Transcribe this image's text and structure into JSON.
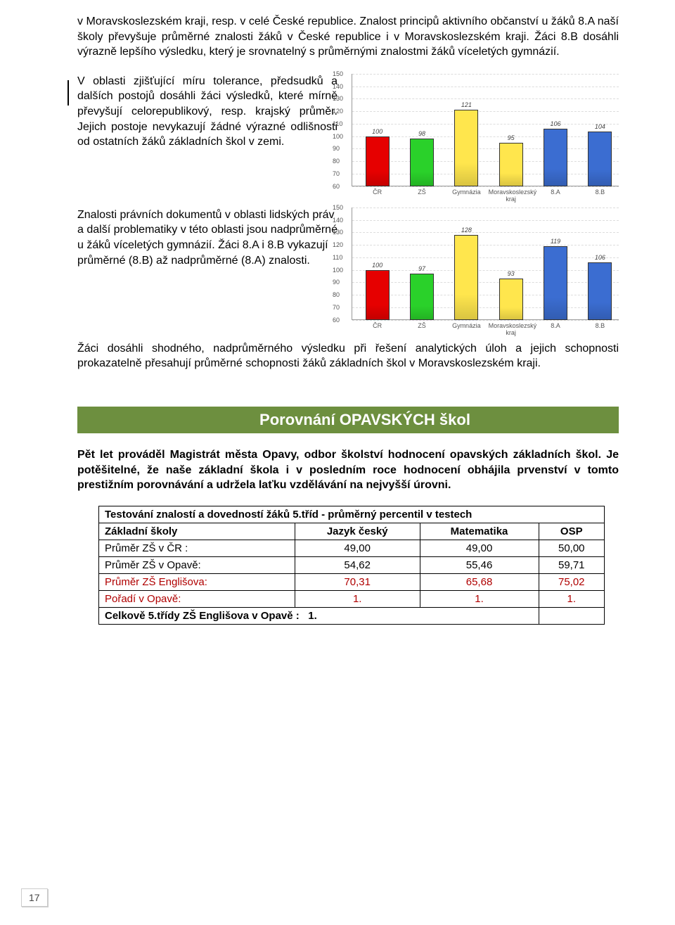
{
  "para1": "v Moravskoslezském kraji, resp. v celé České republice. Znalost principů aktivního občanství u žáků 8.A naší školy převyšuje průměrné znalosti žáků v České republice i v Moravskoslezském kraji. Žáci 8.B dosáhli výrazně lepšího výsledku, který je srovnatelný s průměrnými znalostmi žáků víceletých gymnázií.",
  "para2": "V oblasti zjišťující míru tolerance, předsudků a dalších postojů dosáhli žáci výsledků, které mírně převyšují celorepublikový, resp. krajský průměr. Jejich postoje nevykazují žádné výrazné odlišnosti od ostatních žáků základních škol v zemi.",
  "para3": "Znalosti právních dokumentů v oblasti lidských práv a další problematiky v této oblasti jsou nadprůměrné u žáků víceletých gymnázií. Žáci 8.A i 8.B vykazují průměrné (8.B) až nadprůměrné (8.A) znalosti.",
  "para4": "Žáci dosáhli shodného, nadprůměrného výsledku při řešení analytických úloh a jejich schopnosti prokazatelně přesahují průměrné schopnosti žáků základních škol v Moravskoslezském kraji.",
  "section_title": "Porovnání OPAVSKÝCH škol",
  "para5": "Pět let prováděl Magistrát města Opavy, odbor školství hodnocení opavských základních škol. Je potěšitelné, že naše základní škola i v posledním roce hodnocení obhájila prvenství v tomto prestižním porovnávání a udržela laťku vzdělávání na nejvyšší úrovni.",
  "chart1": {
    "type": "bar",
    "ylim": [
      60,
      150
    ],
    "ytick_step": 10,
    "categories": [
      "ČR",
      "ZŠ",
      "Gymnázia",
      "Moravskoslezský kraj",
      "8.A",
      "8.B"
    ],
    "values": [
      100,
      98,
      121,
      95,
      106,
      104
    ],
    "bar_colors": [
      "#e60000",
      "#2ad12a",
      "#ffe64d",
      "#ffe64d",
      "#3b6dd1",
      "#3b6dd1"
    ],
    "grid_color": "#dddddd"
  },
  "chart2": {
    "type": "bar",
    "ylim": [
      60,
      150
    ],
    "ytick_step": 10,
    "categories": [
      "ČR",
      "ZŠ",
      "Gymnázia",
      "Moravskoslezský kraj",
      "8.A",
      "8.B"
    ],
    "values": [
      100,
      97,
      128,
      93,
      119,
      106
    ],
    "bar_colors": [
      "#e60000",
      "#2ad12a",
      "#ffe64d",
      "#ffe64d",
      "#3b6dd1",
      "#3b6dd1"
    ],
    "grid_color": "#dddddd"
  },
  "table": {
    "title": "Testování znalostí a dovedností žáků 5.tříd - průměrný percentil v testech",
    "columns": [
      "Základní školy",
      "Jazyk český",
      "Matematika",
      "OSP"
    ],
    "rows": [
      {
        "label": "Průměr ZŠ v ČR :",
        "cells": [
          "49,00",
          "49,00",
          "50,00"
        ],
        "style": "normal"
      },
      {
        "label": "Průměr ZŠ v Opavě:",
        "cells": [
          "54,62",
          "55,46",
          "59,71"
        ],
        "style": "normal"
      },
      {
        "label": "Průměr ZŠ Englišova:",
        "cells": [
          "70,31",
          "65,68",
          "75,02"
        ],
        "style": "red"
      },
      {
        "label": "Pořadí v Opavě:",
        "cells": [
          "1.",
          "1.",
          "1."
        ],
        "style": "red"
      }
    ],
    "footer": {
      "label": "Celkově 5.třídy ZŠ Englišova v Opavě :",
      "value": "1."
    }
  },
  "page_number": "17"
}
